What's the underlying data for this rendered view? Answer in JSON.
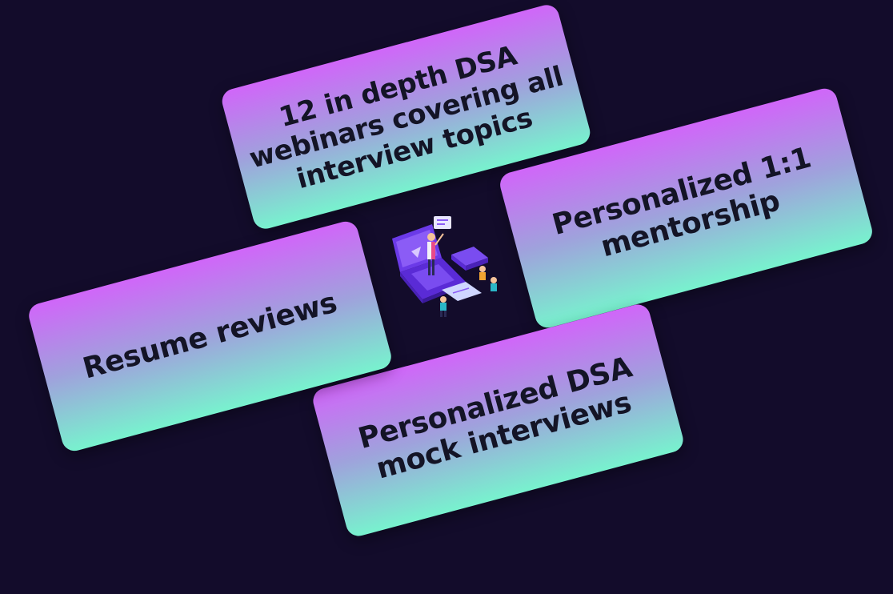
{
  "cards": {
    "webinars": "12 in depth DSA webinars covering all interview topics",
    "mentorship": "Personalized 1:1 mentorship",
    "resume": "Resume reviews",
    "mock": "Personalized DSA mock interviews"
  },
  "illustration": {
    "icon": "online-learning-illustration"
  },
  "colors": {
    "background": "#130c2b",
    "card_gradient_top": "#d066f9",
    "card_gradient_bottom": "#78f2ce",
    "text": "#141426"
  }
}
